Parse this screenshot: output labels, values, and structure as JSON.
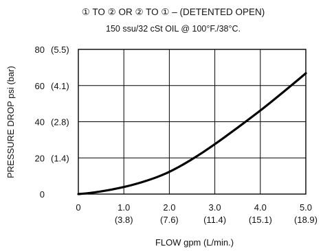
{
  "chart_data": {
    "type": "line",
    "title": "① TO ② OR ② TO ① – (DETENTED OPEN)",
    "subtitle": "150 ssu/32 cSt OIL @ 100°F./38°C.",
    "xlabel": "FLOW gpm (L/min.)",
    "ylabel": "PRESSURE  DROP psi (bar)",
    "xlim": [
      0,
      5
    ],
    "ylim": [
      0,
      80
    ],
    "grid": true,
    "x_ticks": [
      {
        "value": 0,
        "label": "0",
        "sub": ""
      },
      {
        "value": 1,
        "label": "1.0",
        "sub": "(3.8)"
      },
      {
        "value": 2,
        "label": "2.0",
        "sub": "(7.6)"
      },
      {
        "value": 3,
        "label": "3.0",
        "sub": "(11.4)"
      },
      {
        "value": 4,
        "label": "4.0",
        "sub": "(15.1)"
      },
      {
        "value": 5,
        "label": "5.0",
        "sub": "(18.9)"
      }
    ],
    "y_ticks": [
      {
        "value": 0,
        "label": "0",
        "sub": ""
      },
      {
        "value": 20,
        "label": "20",
        "sub": "(1.4)"
      },
      {
        "value": 40,
        "label": "40",
        "sub": "(2.8)"
      },
      {
        "value": 60,
        "label": "60",
        "sub": "(4.1)"
      },
      {
        "value": 80,
        "label": "80",
        "sub": "(5.5)"
      }
    ],
    "series": [
      {
        "color": "#000000",
        "x": [
          0,
          0.25,
          0.5,
          0.75,
          1.0,
          1.25,
          1.5,
          1.75,
          2.0,
          2.25,
          2.5,
          2.75,
          3.0,
          3.25,
          3.5,
          3.75,
          4.0,
          4.25,
          4.5,
          4.75,
          5.0
        ],
        "y": [
          0,
          0.6,
          1.5,
          2.6,
          3.9,
          5.5,
          7.4,
          9.6,
          12.3,
          15.6,
          19.3,
          23.3,
          27.6,
          32.1,
          36.7,
          41.4,
          46.2,
          51.2,
          56.3,
          61.5,
          66.8
        ]
      }
    ]
  }
}
